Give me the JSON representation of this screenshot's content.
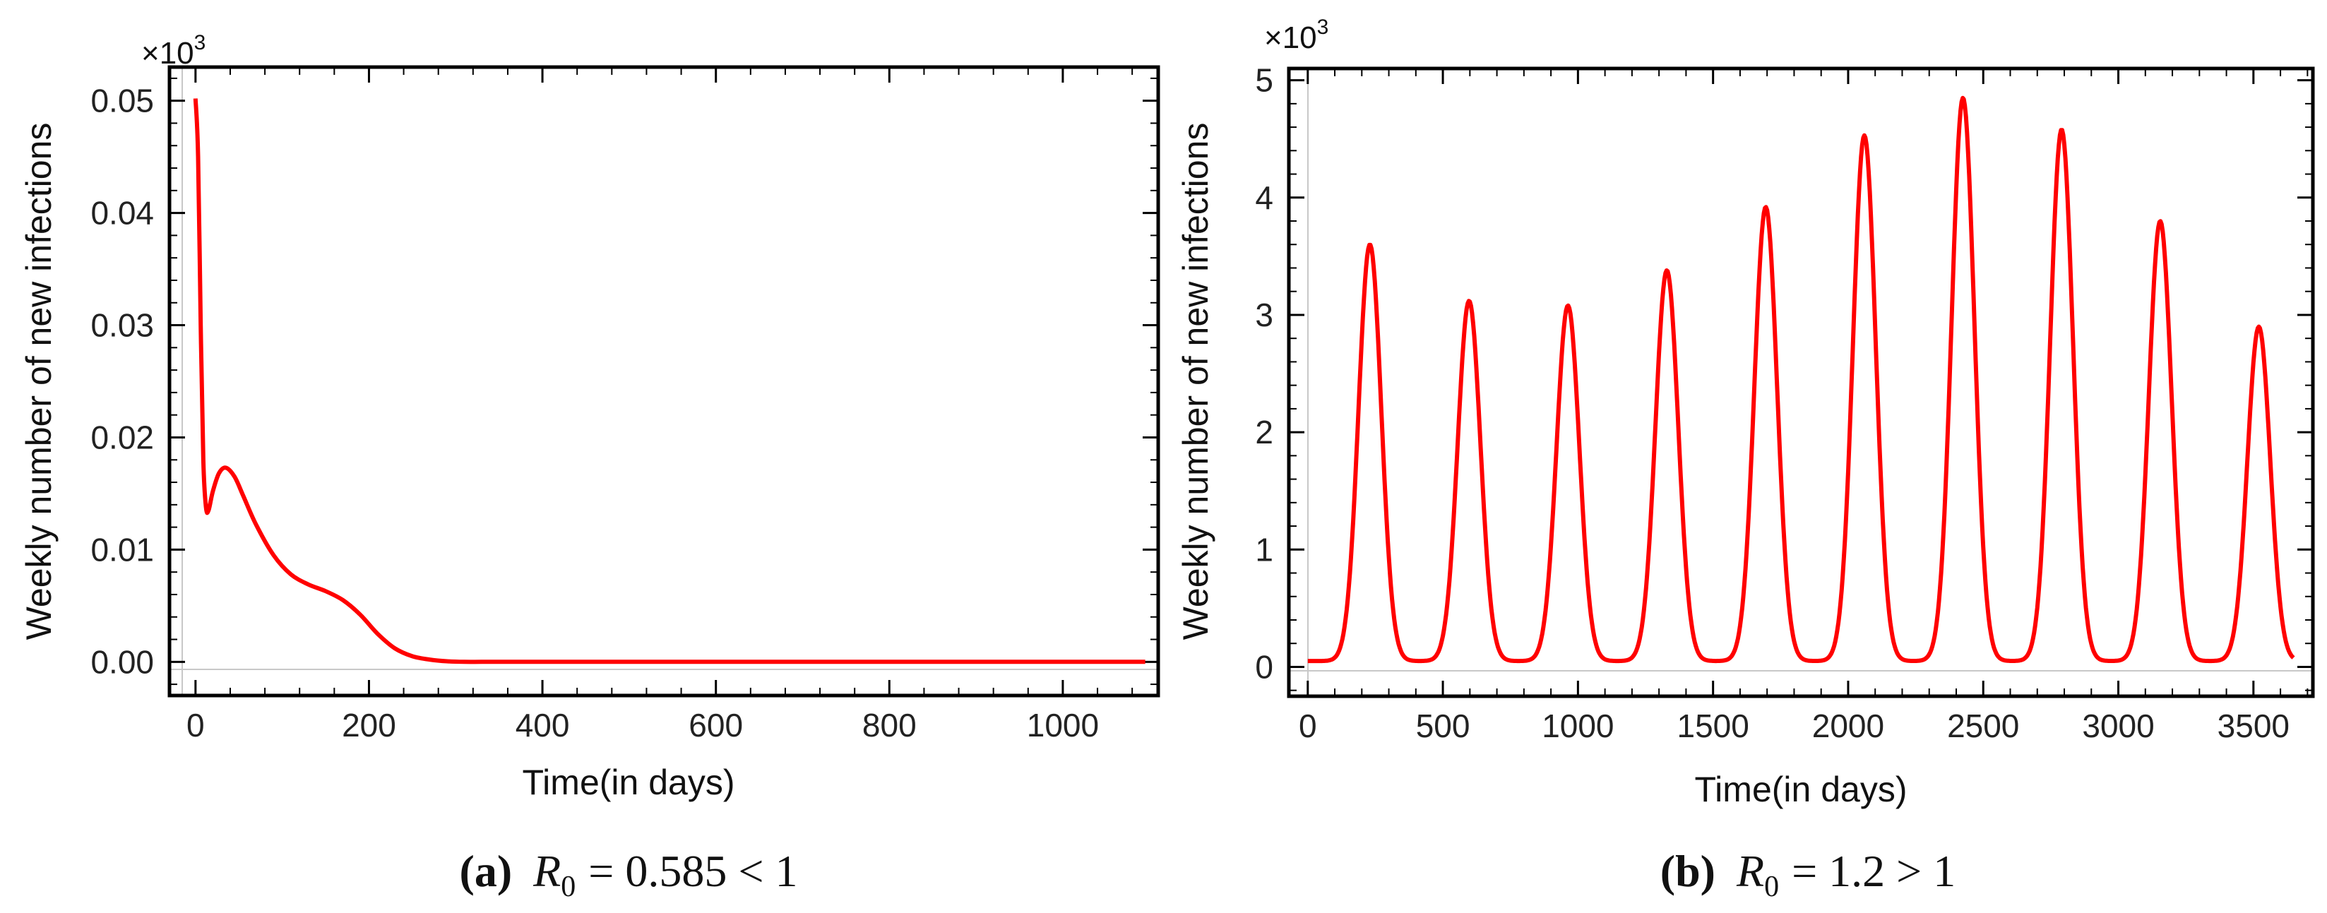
{
  "chart_data": [
    {
      "type": "line",
      "panel": "a",
      "multiplier": {
        "base": "×10",
        "exp": "3"
      },
      "xlabel": "Time(in days)",
      "ylabel": "Weekly number of new infections",
      "xlim": [
        -30,
        1110
      ],
      "ylim": [
        -0.003,
        0.053
      ],
      "x_ticks": [
        0,
        200,
        400,
        600,
        800,
        1000
      ],
      "x_tick_labels": [
        "0",
        "200",
        "400",
        "600",
        "800",
        "1000"
      ],
      "y_ticks": [
        0,
        0.01,
        0.02,
        0.03,
        0.04,
        0.05
      ],
      "y_tick_labels": [
        "0.00",
        "0.01",
        "0.02",
        "0.03",
        "0.04",
        "0.05"
      ],
      "series": [
        {
          "name": "new infections",
          "color": "#ff0000",
          "x": [
            0,
            3,
            6,
            9,
            12,
            15,
            20,
            27,
            35,
            45,
            55,
            70,
            90,
            110,
            130,
            150,
            170,
            190,
            210,
            230,
            250,
            270,
            290,
            310,
            330,
            360,
            400,
            1095
          ],
          "y": [
            0.0502,
            0.045,
            0.03,
            0.018,
            0.0138,
            0.0135,
            0.0152,
            0.0168,
            0.0173,
            0.0165,
            0.0148,
            0.0122,
            0.0095,
            0.0078,
            0.0069,
            0.0063,
            0.0055,
            0.0042,
            0.0025,
            0.0012,
            0.0005,
            0.0002,
            5e-05,
            0.0,
            0.0,
            0.0,
            0.0,
            0.0
          ]
        }
      ],
      "caption": {
        "label": "(a)",
        "symbol": "R",
        "sub": "0",
        "expr": "= 0.585 < 1"
      }
    },
    {
      "type": "line",
      "panel": "b",
      "multiplier": {
        "base": "×10",
        "exp": "3"
      },
      "xlabel": "Time(in days)",
      "ylabel": "Weekly number of new infections",
      "xlim": [
        -70,
        3720
      ],
      "ylim": [
        -0.25,
        5.1
      ],
      "x_ticks": [
        0,
        500,
        1000,
        1500,
        2000,
        2500,
        3000,
        3500
      ],
      "x_tick_labels": [
        "0",
        "500",
        "1000",
        "1500",
        "2000",
        "2500",
        "3000",
        "3500"
      ],
      "y_ticks": [
        0,
        1,
        2,
        3,
        4,
        5
      ],
      "y_tick_labels": [
        "0",
        "1",
        "2",
        "3",
        "4",
        "5"
      ],
      "series": [
        {
          "name": "new infections",
          "color": "#ff0000",
          "baseline": 0.05,
          "peak_width": 42,
          "x_end": 3650,
          "peaks": [
            {
              "t": 230,
              "v": 3.6
            },
            {
              "t": 597,
              "v": 3.12
            },
            {
              "t": 963,
              "v": 3.08
            },
            {
              "t": 1329,
              "v": 3.38
            },
            {
              "t": 1695,
              "v": 3.92
            },
            {
              "t": 2060,
              "v": 4.53
            },
            {
              "t": 2425,
              "v": 4.85
            },
            {
              "t": 2790,
              "v": 4.58
            },
            {
              "t": 3155,
              "v": 3.8
            },
            {
              "t": 3520,
              "v": 2.9
            }
          ]
        }
      ],
      "caption": {
        "label": "(b)",
        "symbol": "R",
        "sub": "0",
        "expr": "= 1.2 > 1"
      }
    }
  ]
}
